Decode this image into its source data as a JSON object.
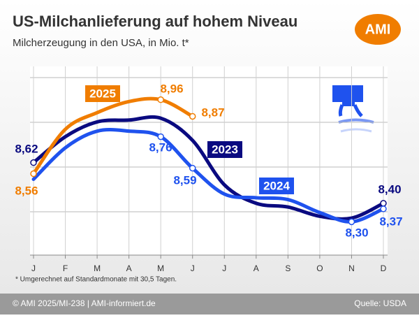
{
  "chart_data": {
    "type": "line",
    "title": "US-Milchanlieferung auf hohem Niveau",
    "subtitle": "Milcherzeugung in den USA, in Mio. t*",
    "logo": "AMI",
    "footnote": "* Umgerechnet auf Standardmonate mit 30,5 Tagen.",
    "copyright": "© AMI 2025/MI-238 | AMI-informiert.de",
    "source": "Quelle: USDA",
    "categories": [
      "J",
      "F",
      "M",
      "A",
      "M",
      "J",
      "J",
      "A",
      "S",
      "O",
      "N",
      "D"
    ],
    "ylim": [
      8.12,
      9.14
    ],
    "grid": true,
    "series": [
      {
        "name": "2023",
        "color": "#0a0a80",
        "values": [
          8.62,
          8.76,
          8.84,
          8.85,
          8.86,
          8.74,
          8.5,
          8.4,
          8.38,
          8.33,
          8.32,
          8.4
        ],
        "value_labels": [
          "8,62",
          null,
          null,
          null,
          null,
          null,
          null,
          null,
          null,
          null,
          null,
          "8,40"
        ]
      },
      {
        "name": "2024",
        "color": "#1f52ee",
        "values": [
          8.53,
          8.7,
          8.79,
          8.79,
          8.76,
          8.59,
          8.45,
          8.43,
          8.42,
          8.35,
          8.3,
          8.37
        ],
        "value_labels": [
          null,
          null,
          null,
          null,
          "8,76",
          "8,59",
          null,
          null,
          null,
          null,
          "8,30",
          "8,37"
        ]
      },
      {
        "name": "2025",
        "color": "#f07d00",
        "values": [
          8.56,
          8.8,
          8.89,
          8.95,
          8.96,
          8.87,
          null,
          null,
          null,
          null,
          null,
          null
        ],
        "value_labels": [
          "8,56",
          null,
          null,
          null,
          "8,96",
          "8,87",
          null,
          null,
          null,
          null,
          null,
          null
        ]
      }
    ]
  }
}
